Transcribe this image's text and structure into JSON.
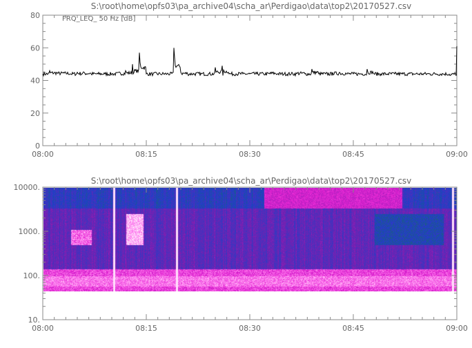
{
  "chart_data": [
    {
      "type": "line",
      "title": "S:\\root\\home\\opfs03\\pa_archive04\\scha_ar\\Perdigao\\data\\top2\\20170527.csv",
      "series_label": "FRQ_LEQ_ 50 Hz [dB]",
      "x_ticks": [
        "08:00",
        "08:15",
        "08:30",
        "08:45",
        "09:00"
      ],
      "y_ticks": [
        "0",
        "20",
        "40",
        "60",
        "80"
      ],
      "xlim": [
        "08:00",
        "09:00"
      ],
      "ylim": [
        0,
        80
      ],
      "color": "#000000",
      "x_minutes_after_0800": [
        0,
        1,
        2,
        3,
        4,
        5,
        6,
        7,
        8,
        9,
        10,
        11,
        12,
        13,
        14,
        15,
        16,
        17,
        18,
        19,
        20,
        21,
        22,
        23,
        24,
        25,
        26,
        27,
        28,
        29,
        30,
        31,
        32,
        33,
        34,
        35,
        36,
        37,
        38,
        39,
        40,
        41,
        42,
        43,
        44,
        45,
        46,
        47,
        48,
        49,
        50,
        51,
        52,
        53,
        54,
        55,
        56,
        57,
        58,
        59,
        60
      ],
      "values": [
        44,
        46,
        45,
        45,
        44,
        45,
        45,
        44,
        44,
        44,
        44,
        45,
        46,
        50,
        57,
        44,
        44,
        44,
        44,
        60,
        45,
        44,
        44,
        44,
        44,
        48,
        49,
        44,
        44,
        44,
        44,
        44,
        44,
        45,
        44,
        44,
        44,
        45,
        44,
        47,
        44,
        44,
        45,
        45,
        44,
        44,
        44,
        47,
        44,
        44,
        44,
        44,
        44,
        44,
        44,
        44,
        44,
        44,
        44,
        43,
        61
      ]
    },
    {
      "type": "heatmap",
      "title": "S:\\root\\home\\opfs03\\pa_archive04\\scha_ar\\Perdigao\\data\\top2\\20170527.csv",
      "x_ticks": [
        "08:00",
        "08:15",
        "08:30",
        "08:45",
        "09:00"
      ],
      "y_ticks": [
        "10.",
        "100.",
        "1000.",
        "10000."
      ],
      "xlim": [
        "08:00",
        "09:00"
      ],
      "ylim": [
        10,
        10000
      ],
      "y_scale": "log",
      "data_freq_range": [
        45,
        10000
      ],
      "colormap": [
        "#1a7a40",
        "#1f3fc8",
        "#7a1fb0",
        "#e020d0",
        "#ff80f0",
        "#ffffff"
      ]
    }
  ]
}
